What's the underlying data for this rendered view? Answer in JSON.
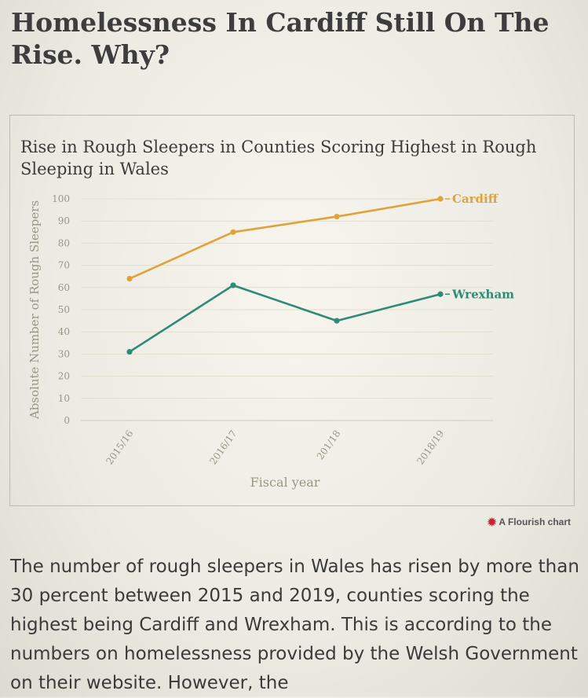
{
  "headline": "Homelessness In Cardiff Still On The Rise. Why?",
  "chart_data": {
    "type": "line",
    "title": "Rise in Rough Sleepers in Counties Scoring Highest in Rough Sleeping in Wales",
    "xlabel": "Fiscal year",
    "ylabel": "Absolute Number of Rough Sleepers",
    "categories": [
      "2015/16",
      "2016/17",
      "201/18",
      "2018/19"
    ],
    "ylim": [
      0,
      100
    ],
    "yticks": [
      0,
      10,
      20,
      30,
      40,
      50,
      60,
      70,
      80,
      90,
      100
    ],
    "grid": true,
    "legend": "end-of-line labels",
    "series": [
      {
        "name": "Cardiff",
        "values": [
          64,
          85,
          92,
          100
        ],
        "color": "#e0a33a"
      },
      {
        "name": "Wrexham",
        "values": [
          31,
          61,
          45,
          57
        ],
        "color": "#2e8b76"
      }
    ]
  },
  "attribution": "A Flourish chart",
  "article_text": "The number of rough sleepers in Wales has risen by more than 30 percent between 2015 and 2019, counties scoring the highest being Cardiff and Wrexham. This is according to the numbers on homelessness provided by the Welsh Government on their website. However, the"
}
